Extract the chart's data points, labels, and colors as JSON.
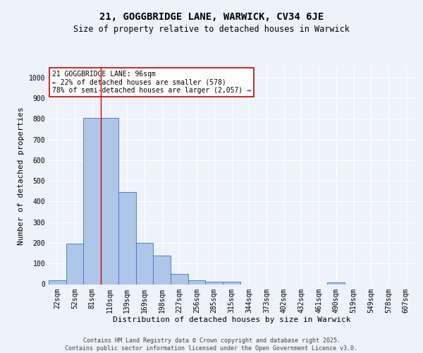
{
  "title": "21, GOGGBRIDGE LANE, WARWICK, CV34 6JE",
  "subtitle": "Size of property relative to detached houses in Warwick",
  "xlabel": "Distribution of detached houses by size in Warwick",
  "ylabel": "Number of detached properties",
  "categories": [
    "22sqm",
    "52sqm",
    "81sqm",
    "110sqm",
    "139sqm",
    "169sqm",
    "198sqm",
    "227sqm",
    "256sqm",
    "285sqm",
    "315sqm",
    "344sqm",
    "373sqm",
    "402sqm",
    "432sqm",
    "461sqm",
    "490sqm",
    "519sqm",
    "549sqm",
    "578sqm",
    "607sqm"
  ],
  "values": [
    20,
    195,
    805,
    805,
    445,
    200,
    140,
    50,
    18,
    13,
    12,
    0,
    0,
    0,
    0,
    0,
    8,
    0,
    0,
    0,
    0
  ],
  "bar_color": "#aec6e8",
  "bar_edge_color": "#4472c4",
  "vline_color": "#cc0000",
  "vline_pos": 2.5,
  "annotation_text": "21 GOGGBRIDGE LANE: 96sqm\n← 22% of detached houses are smaller (578)\n78% of semi-detached houses are larger (2,057) →",
  "annotation_box_color": "#cc0000",
  "ylim": [
    0,
    1050
  ],
  "yticks": [
    0,
    100,
    200,
    300,
    400,
    500,
    600,
    700,
    800,
    900,
    1000
  ],
  "background_color": "#eef2fa",
  "grid_color": "#ffffff",
  "footer": "Contains HM Land Registry data © Crown copyright and database right 2025.\nContains public sector information licensed under the Open Government Licence v3.0.",
  "title_fontsize": 10,
  "subtitle_fontsize": 8.5,
  "xlabel_fontsize": 8,
  "ylabel_fontsize": 8,
  "annotation_fontsize": 7,
  "footer_fontsize": 6,
  "tick_fontsize": 7
}
